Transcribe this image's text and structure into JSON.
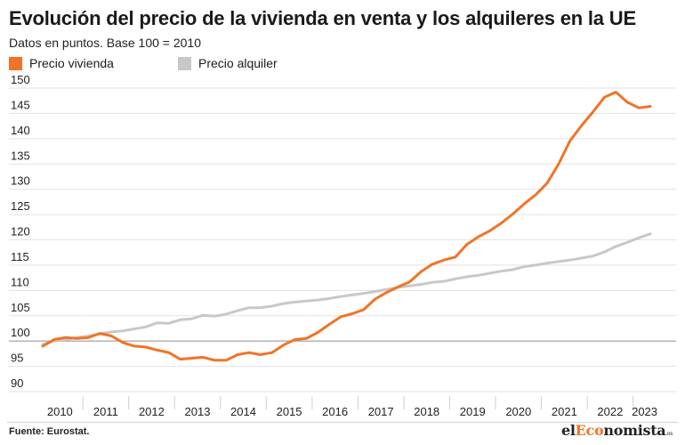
{
  "header": {
    "title": "Evolución del precio de la vivienda en venta y los alquileres en la UE",
    "subtitle": "Datos en puntos. Base 100 = 2010"
  },
  "footer": {
    "source": "Fuente: Eurostat.",
    "logo_pre": "el",
    "logo_accent": "Eco",
    "logo_post": "nomista",
    "logo_suffix": ".es"
  },
  "chart_data": {
    "type": "line",
    "title": "Evolución del precio de la vivienda en venta y los alquileres en la UE",
    "subtitle": "Datos en puntos. Base 100 = 2010",
    "xlabel": "",
    "ylabel": "",
    "ylim": [
      90,
      150
    ],
    "yticks": [
      90,
      95,
      100,
      105,
      110,
      115,
      120,
      125,
      130,
      135,
      140,
      145,
      150
    ],
    "xticks": [
      "2010",
      "2011",
      "2012",
      "2013",
      "2014",
      "2015",
      "2016",
      "2017",
      "2018",
      "2019",
      "2020",
      "2021",
      "2022",
      "2023"
    ],
    "x": [
      "2010-Q1",
      "2010-Q2",
      "2010-Q3",
      "2010-Q4",
      "2011-Q1",
      "2011-Q2",
      "2011-Q3",
      "2011-Q4",
      "2012-Q1",
      "2012-Q2",
      "2012-Q3",
      "2012-Q4",
      "2013-Q1",
      "2013-Q2",
      "2013-Q3",
      "2013-Q4",
      "2014-Q1",
      "2014-Q2",
      "2014-Q3",
      "2014-Q4",
      "2015-Q1",
      "2015-Q2",
      "2015-Q3",
      "2015-Q4",
      "2016-Q1",
      "2016-Q2",
      "2016-Q3",
      "2016-Q4",
      "2017-Q1",
      "2017-Q2",
      "2017-Q3",
      "2017-Q4",
      "2018-Q1",
      "2018-Q2",
      "2018-Q3",
      "2018-Q4",
      "2019-Q1",
      "2019-Q2",
      "2019-Q3",
      "2019-Q4",
      "2020-Q1",
      "2020-Q2",
      "2020-Q3",
      "2020-Q4",
      "2021-Q1",
      "2021-Q2",
      "2021-Q3",
      "2021-Q4",
      "2022-Q1",
      "2022-Q2",
      "2022-Q3",
      "2022-Q4",
      "2023-Q1",
      "2023-Q2"
    ],
    "grid": true,
    "legend_position": "top-left",
    "series": [
      {
        "name": "Precio vivienda",
        "color": "#f07427",
        "values": [
          99.0,
          100.3,
          100.7,
          100.5,
          100.7,
          101.5,
          101.0,
          99.7,
          99.0,
          98.8,
          98.2,
          97.7,
          96.4,
          96.6,
          96.8,
          96.2,
          96.2,
          97.3,
          97.7,
          97.3,
          97.7,
          99.2,
          100.3,
          100.5,
          101.7,
          103.3,
          104.8,
          105.4,
          106.2,
          108.3,
          109.6,
          110.7,
          111.7,
          113.7,
          115.2,
          116.0,
          116.6,
          119.1,
          120.6,
          121.8,
          123.3,
          125.1,
          127.1,
          128.9,
          131.2,
          135.0,
          139.6,
          142.6,
          145.3,
          148.2,
          149.2,
          147.2,
          146.1,
          146.4
        ]
      },
      {
        "name": "Precio alquiler",
        "color": "#c8c8c8",
        "values": [
          99.3,
          100.0,
          100.3,
          100.7,
          101.0,
          101.4,
          101.8,
          102.0,
          102.4,
          102.8,
          103.6,
          103.5,
          104.2,
          104.4,
          105.1,
          104.9,
          105.3,
          106.0,
          106.6,
          106.6,
          106.9,
          107.4,
          107.7,
          107.9,
          108.1,
          108.4,
          108.8,
          109.1,
          109.4,
          109.8,
          110.2,
          110.6,
          110.9,
          111.2,
          111.6,
          111.8,
          112.3,
          112.7,
          113.0,
          113.4,
          113.8,
          114.1,
          114.7,
          115.0,
          115.4,
          115.7,
          116.0,
          116.4,
          116.8,
          117.6,
          118.7,
          119.5,
          120.4,
          121.2
        ]
      }
    ]
  }
}
